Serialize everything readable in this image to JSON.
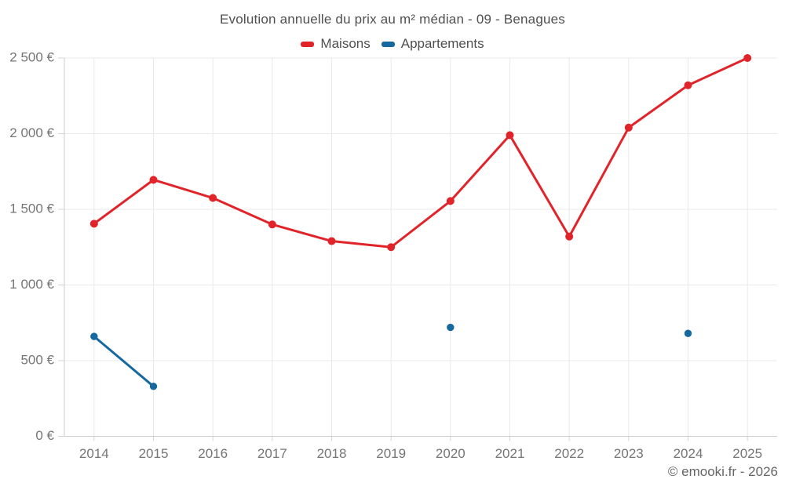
{
  "page": {
    "footer": "© emooki.fr - 2026"
  },
  "chart_data": {
    "type": "line",
    "title": "Evolution annuelle du prix au m² médian - 09 - Benagues",
    "categories": [
      "2014",
      "2015",
      "2016",
      "2017",
      "2018",
      "2019",
      "2020",
      "2021",
      "2022",
      "2023",
      "2024",
      "2025"
    ],
    "series": [
      {
        "name": "Maisons",
        "color": "#e0242a",
        "values": [
          1405,
          1695,
          1575,
          1400,
          1290,
          1250,
          1555,
          1990,
          1320,
          2040,
          2320,
          2500
        ],
        "marker_radius": 5
      },
      {
        "name": "Appartements",
        "color": "#16699e",
        "values": [
          660,
          330,
          null,
          null,
          null,
          null,
          720,
          null,
          null,
          null,
          680,
          null
        ],
        "marker_radius": 4.7
      }
    ],
    "xlabel": "",
    "ylabel": "",
    "ylim": [
      0,
      2500
    ],
    "ytick_step": 500,
    "y_tick_suffix": " €",
    "grid": true,
    "legend_position": "top"
  },
  "colors": {
    "grid_line": "#e9e9e9",
    "axis_line": "#cccccc",
    "tick_line": "#d5d5d5",
    "axis_label": "#757575",
    "title_text": "#4f4f4f",
    "footer_text": "#666666",
    "background": "#ffffff"
  }
}
